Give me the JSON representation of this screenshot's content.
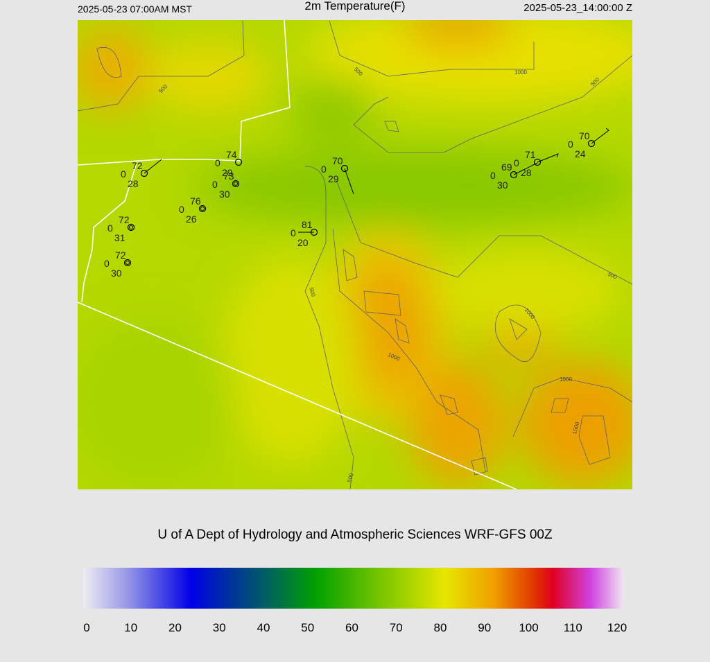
{
  "header": {
    "left": "2025-05-23 07:00AM MST",
    "title": "2m Temperature(F)",
    "right": "2025-05-23_14:00:00 Z"
  },
  "contour_labels": [
    "500",
    "1000",
    "500",
    "500",
    "500",
    "1000",
    "1000",
    "1000",
    "1500",
    "500",
    "500"
  ],
  "stations": [
    {
      "temp": "72",
      "left": "0",
      "dew": "28"
    },
    {
      "temp": "74",
      "left": "0",
      "dew": "29"
    },
    {
      "temp": "73",
      "left": "0",
      "dew": "30"
    },
    {
      "temp": "76",
      "left": "0",
      "dew": "26"
    },
    {
      "temp": "72",
      "left": "0",
      "dew": "31"
    },
    {
      "temp": "72",
      "left": "0",
      "dew": "30"
    },
    {
      "temp": "70",
      "left": "0",
      "dew": "29"
    },
    {
      "temp": "81",
      "left": "0",
      "dew": "20"
    },
    {
      "temp": "69",
      "left": "0",
      "dew": "30"
    },
    {
      "temp": "71",
      "left": "0",
      "dew": "28"
    },
    {
      "temp": "70",
      "left": "0",
      "dew": "24"
    }
  ],
  "credit": "U of A Dept of Hydrology and Atmospheric Sciences WRF-GFS 00Z",
  "colorbar": {
    "ticks": [
      0,
      10,
      20,
      30,
      40,
      50,
      60,
      70,
      80,
      90,
      100,
      110,
      120
    ]
  }
}
